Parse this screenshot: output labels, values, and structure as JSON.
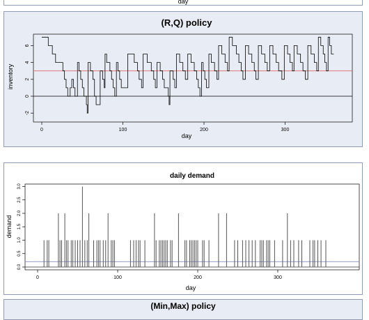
{
  "top_panel": {
    "xlabel": "day"
  },
  "bottom_panel": {
    "title": "(Min,Max) policy"
  },
  "chart_data": [
    {
      "type": "line",
      "title": "(R,Q) policy",
      "xlabel": "day",
      "ylabel": "inventory",
      "xlim": [
        0,
        365
      ],
      "ylim": [
        -2,
        7
      ],
      "xticks": [
        0,
        100,
        200,
        300
      ],
      "yticks": [
        -2,
        0,
        2,
        4,
        6
      ],
      "hlines": [
        {
          "y": 0,
          "color": "#000000"
        },
        {
          "y": 3,
          "color": "#e06666"
        }
      ],
      "series": [
        {
          "step": true,
          "color": "#000000",
          "points": [
            [
              0,
              7
            ],
            [
              8,
              6
            ],
            [
              13,
              5
            ],
            [
              17,
              4
            ],
            [
              26,
              3
            ],
            [
              28,
              2
            ],
            [
              30,
              1
            ],
            [
              32,
              0
            ],
            [
              35,
              1
            ],
            [
              37,
              2
            ],
            [
              39,
              1
            ],
            [
              41,
              0
            ],
            [
              44,
              4
            ],
            [
              46,
              3
            ],
            [
              48,
              2
            ],
            [
              50,
              1
            ],
            [
              52,
              0
            ],
            [
              55,
              -1
            ],
            [
              56,
              -2
            ],
            [
              57,
              4
            ],
            [
              60,
              3
            ],
            [
              63,
              2
            ],
            [
              65,
              0
            ],
            [
              67,
              -1
            ],
            [
              72,
              3
            ],
            [
              75,
              2
            ],
            [
              77,
              1
            ],
            [
              78,
              5
            ],
            [
              80,
              4
            ],
            [
              84,
              3
            ],
            [
              86,
              2
            ],
            [
              88,
              1
            ],
            [
              90,
              0
            ],
            [
              92,
              4
            ],
            [
              94,
              3
            ],
            [
              96,
              2
            ],
            [
              98,
              1
            ],
            [
              106,
              5
            ],
            [
              114,
              4
            ],
            [
              118,
              3
            ],
            [
              120,
              2
            ],
            [
              123,
              1
            ],
            [
              125,
              5
            ],
            [
              130,
              4
            ],
            [
              135,
              3
            ],
            [
              138,
              2
            ],
            [
              140,
              1
            ],
            [
              142,
              4
            ],
            [
              146,
              3
            ],
            [
              149,
              2
            ],
            [
              151,
              1
            ],
            [
              156,
              0
            ],
            [
              157,
              -1
            ],
            [
              158,
              3
            ],
            [
              162,
              2
            ],
            [
              164,
              1
            ],
            [
              166,
              5
            ],
            [
              170,
              4
            ],
            [
              174,
              3
            ],
            [
              177,
              2
            ],
            [
              180,
              5
            ],
            [
              184,
              4
            ],
            [
              188,
              3
            ],
            [
              191,
              2
            ],
            [
              193,
              1
            ],
            [
              195,
              0
            ],
            [
              197,
              4
            ],
            [
              199,
              3
            ],
            [
              201,
              2
            ],
            [
              203,
              1
            ],
            [
              206,
              5
            ],
            [
              209,
              4
            ],
            [
              213,
              3
            ],
            [
              216,
              2
            ],
            [
              218,
              6
            ],
            [
              222,
              5
            ],
            [
              226,
              4
            ],
            [
              229,
              3
            ],
            [
              231,
              7
            ],
            [
              235,
              6
            ],
            [
              240,
              5
            ],
            [
              243,
              4
            ],
            [
              246,
              3
            ],
            [
              248,
              2
            ],
            [
              251,
              6
            ],
            [
              255,
              5
            ],
            [
              259,
              4
            ],
            [
              262,
              3
            ],
            [
              264,
              2
            ],
            [
              267,
              6
            ],
            [
              271,
              5
            ],
            [
              275,
              4
            ],
            [
              278,
              3
            ],
            [
              281,
              6
            ],
            [
              285,
              5
            ],
            [
              289,
              4
            ],
            [
              292,
              3
            ],
            [
              296,
              2
            ],
            [
              299,
              6
            ],
            [
              303,
              5
            ],
            [
              306,
              4
            ],
            [
              309,
              3
            ],
            [
              311,
              6
            ],
            [
              315,
              5
            ],
            [
              319,
              4
            ],
            [
              322,
              3
            ],
            [
              325,
              2
            ],
            [
              328,
              6
            ],
            [
              332,
              5
            ],
            [
              336,
              4
            ],
            [
              339,
              3
            ],
            [
              341,
              7
            ],
            [
              344,
              6
            ],
            [
              347,
              5
            ],
            [
              349,
              4
            ],
            [
              351,
              3
            ],
            [
              353,
              7
            ],
            [
              355,
              6
            ],
            [
              357,
              5
            ],
            [
              360,
              5
            ]
          ]
        }
      ]
    },
    {
      "type": "bar",
      "title": "daily demand",
      "xlabel": "day",
      "ylabel": "demand",
      "xlim": [
        0,
        365
      ],
      "ylim": [
        0,
        3
      ],
      "xticks": [
        0,
        100,
        200,
        300
      ],
      "yticks": [
        0.0,
        0.5,
        1.0,
        1.5,
        2.0,
        2.5,
        3.0
      ],
      "yticklabels": [
        "0.0",
        "0.5",
        "1.0",
        "1.5",
        "2.0",
        "2.5",
        "3.0"
      ],
      "hlines": [
        {
          "y": 0,
          "color": "#333333"
        },
        {
          "y": 0.2,
          "color": "#8a8ac0"
        }
      ],
      "days": [
        8,
        12,
        14,
        26,
        28,
        30,
        34,
        36,
        38,
        42,
        44,
        47,
        50,
        53,
        56,
        59,
        62,
        64,
        70,
        74,
        76,
        78,
        82,
        85,
        88,
        92,
        94,
        96,
        116,
        120,
        123,
        126,
        128,
        134,
        146,
        148,
        152,
        154,
        156,
        158,
        160,
        162,
        166,
        168,
        176,
        184,
        186,
        190,
        192,
        194,
        196,
        198,
        200,
        206,
        208,
        214,
        226,
        236,
        246,
        250,
        256,
        260,
        264,
        268,
        272,
        278,
        280,
        282,
        286,
        288,
        290,
        296,
        306,
        312,
        316,
        320,
        326,
        330,
        340,
        344,
        346,
        350,
        354,
        360
      ],
      "values": [
        1,
        1,
        1,
        2,
        1,
        1,
        2,
        1,
        1,
        1,
        1,
        1,
        1,
        1,
        3,
        1,
        1,
        2,
        1,
        1,
        1,
        1,
        1,
        1,
        2,
        1,
        1,
        1,
        1,
        1,
        1,
        1,
        1,
        1,
        2,
        1,
        1,
        1,
        1,
        1,
        1,
        1,
        1,
        1,
        2,
        1,
        1,
        1,
        1,
        1,
        1,
        1,
        1,
        1,
        1,
        1,
        2,
        2,
        1,
        1,
        1,
        1,
        1,
        1,
        1,
        1,
        1,
        1,
        1,
        1,
        1,
        1,
        1,
        2,
        1,
        1,
        1,
        1,
        1,
        1,
        1,
        1,
        1,
        1
      ],
      "color": "#555555"
    }
  ]
}
